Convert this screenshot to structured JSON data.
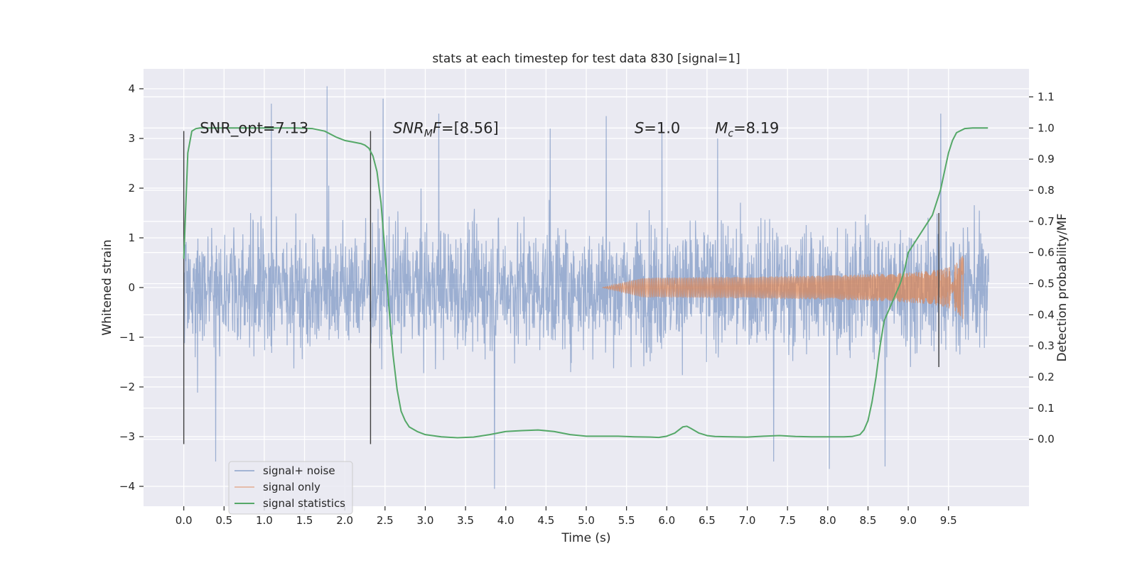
{
  "chart_data": {
    "type": "line",
    "title": "stats at each timestep for test data 830 [signal=1]",
    "xlabel": "Time (s)",
    "ylabel": "Whitened strain",
    "y2label": "Detection probability/MF",
    "xlim": [
      -0.5,
      10.5
    ],
    "ylim": [
      -4.4,
      4.4
    ],
    "y2lim": [
      -0.215,
      1.19
    ],
    "xticks": [
      0.0,
      0.5,
      1.0,
      1.5,
      2.0,
      2.5,
      3.0,
      3.5,
      4.0,
      4.5,
      5.0,
      5.5,
      6.0,
      6.5,
      7.0,
      7.5,
      8.0,
      8.5,
      9.0,
      9.5
    ],
    "xtick_labels": [
      "0.0",
      "0.5",
      "1.0",
      "1.5",
      "2.0",
      "2.5",
      "3.0",
      "3.5",
      "4.0",
      "4.5",
      "5.0",
      "5.5",
      "6.0",
      "6.5",
      "7.0",
      "7.5",
      "8.0",
      "8.5",
      "9.0",
      "9.5"
    ],
    "yticks": [
      -4,
      -3,
      -2,
      -1,
      0,
      1,
      2,
      3,
      4
    ],
    "ytick_labels": [
      "−4",
      "−3",
      "−2",
      "−1",
      "0",
      "1",
      "2",
      "3",
      "4"
    ],
    "y2ticks": [
      0.0,
      0.1,
      0.2,
      0.3,
      0.4,
      0.5,
      0.6,
      0.7,
      0.8,
      0.9,
      1.0,
      1.1
    ],
    "y2tick_labels": [
      "0.0",
      "0.1",
      "0.2",
      "0.3",
      "0.4",
      "0.5",
      "0.6",
      "0.7",
      "0.8",
      "0.9",
      "1.0",
      "1.1"
    ],
    "grid": true,
    "legend_position": "lower-left",
    "annotations": [
      {
        "text": "SNR_opt=7.13",
        "x": 0.2,
        "y2": 1.0
      },
      {
        "text": "SNR",
        "sub": "M",
        "text_after": "F=[8.56]",
        "italic": true,
        "x": 2.6,
        "y2": 1.0
      },
      {
        "text": "S",
        "text_after": "=1.0",
        "italic": true,
        "x": 5.6,
        "y2": 1.0
      },
      {
        "text": "M",
        "sub": "c",
        "text_after": "=8.19",
        "italic": true,
        "x": 6.6,
        "y2": 1.0
      }
    ],
    "markers": [
      {
        "x": 0.0,
        "y_range": [
          -3.15,
          3.15
        ]
      },
      {
        "x": 2.32,
        "y_range": [
          -3.15,
          3.15
        ]
      },
      {
        "x": 9.38,
        "y_range": [
          -1.6,
          1.5
        ]
      }
    ],
    "series": [
      {
        "name": "signal+ noise",
        "color": "#4c72b0",
        "axis": "left",
        "t_range": [
          0.0,
          10.0
        ],
        "rms": 1.0,
        "peaks": [
          -3.5,
          3.7,
          4.05,
          3.8,
          3.5,
          -4.05,
          3.2,
          3.45,
          3.3,
          3.0,
          -3.5,
          -3.65,
          -3.6,
          3.5
        ]
      },
      {
        "name": "signal only",
        "color": "#dd8452",
        "axis": "left",
        "t_range": [
          5.2,
          9.69
        ],
        "peak_amplitude": 0.88,
        "merger_time": 9.69
      },
      {
        "name": "signal statistics",
        "color": "#55a868",
        "axis": "right",
        "x": [
          0.0,
          0.05,
          0.1,
          0.15,
          0.2,
          0.3,
          0.5,
          0.8,
          1.0,
          1.2,
          1.4,
          1.6,
          1.75,
          1.9,
          2.0,
          2.1,
          2.2,
          2.25,
          2.3,
          2.35,
          2.4,
          2.45,
          2.5,
          2.55,
          2.6,
          2.65,
          2.7,
          2.75,
          2.8,
          2.9,
          3.0,
          3.2,
          3.4,
          3.6,
          3.8,
          4.0,
          4.2,
          4.4,
          4.6,
          4.8,
          5.0,
          5.2,
          5.4,
          5.6,
          5.8,
          5.9,
          6.0,
          6.1,
          6.2,
          6.25,
          6.3,
          6.4,
          6.5,
          6.6,
          6.8,
          7.0,
          7.2,
          7.4,
          7.6,
          7.8,
          8.0,
          8.2,
          8.3,
          8.4,
          8.45,
          8.5,
          8.55,
          8.6,
          8.65,
          8.7,
          8.75,
          8.8,
          8.85,
          8.9,
          8.95,
          9.0,
          9.1,
          9.2,
          9.3,
          9.35,
          9.4,
          9.45,
          9.5,
          9.55,
          9.6,
          9.7,
          9.8,
          9.9,
          9.99
        ],
        "y": [
          0.58,
          0.92,
          0.99,
          0.998,
          1.0,
          1.0,
          1.0,
          1.0,
          1.0,
          1.0,
          1.0,
          0.998,
          0.99,
          0.97,
          0.96,
          0.955,
          0.95,
          0.945,
          0.935,
          0.91,
          0.86,
          0.76,
          0.6,
          0.42,
          0.27,
          0.16,
          0.09,
          0.06,
          0.04,
          0.025,
          0.015,
          0.008,
          0.005,
          0.007,
          0.015,
          0.025,
          0.028,
          0.03,
          0.025,
          0.015,
          0.01,
          0.01,
          0.01,
          0.008,
          0.007,
          0.006,
          0.01,
          0.02,
          0.04,
          0.042,
          0.035,
          0.02,
          0.012,
          0.009,
          0.008,
          0.007,
          0.01,
          0.012,
          0.009,
          0.008,
          0.008,
          0.008,
          0.009,
          0.015,
          0.03,
          0.06,
          0.12,
          0.2,
          0.3,
          0.38,
          0.41,
          0.44,
          0.47,
          0.5,
          0.54,
          0.6,
          0.64,
          0.68,
          0.72,
          0.76,
          0.8,
          0.86,
          0.92,
          0.96,
          0.985,
          0.998,
          1.0,
          1.0,
          1.0
        ]
      }
    ]
  }
}
